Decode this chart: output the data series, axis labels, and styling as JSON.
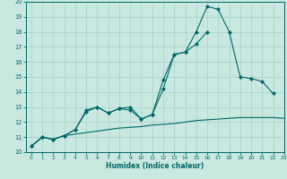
{
  "xlabel": "Humidex (Indice chaleur)",
  "bg_color": "#c8e8e0",
  "line_color": "#006868",
  "grid_color": "#a8d0c8",
  "xlim": [
    -0.5,
    23
  ],
  "ylim": [
    10,
    20
  ],
  "xticks": [
    0,
    1,
    2,
    3,
    4,
    5,
    6,
    7,
    8,
    9,
    10,
    11,
    12,
    13,
    14,
    15,
    16,
    17,
    18,
    19,
    20,
    21,
    22,
    23
  ],
  "yticks": [
    10,
    11,
    12,
    13,
    14,
    15,
    16,
    17,
    18,
    19,
    20
  ],
  "line1_x": [
    0,
    1,
    2,
    3,
    4,
    5,
    6,
    7,
    8,
    9,
    10,
    11,
    12,
    13,
    14,
    15,
    16,
    17,
    18,
    19,
    20,
    21,
    22
  ],
  "line1_y": [
    10.4,
    11.0,
    10.85,
    11.1,
    11.5,
    12.7,
    13.0,
    12.6,
    12.9,
    12.8,
    12.2,
    12.5,
    14.8,
    16.5,
    16.65,
    18.0,
    19.7,
    19.5,
    18.0,
    15.0,
    14.9,
    14.7,
    13.9
  ],
  "line2_x": [
    0,
    1,
    2,
    3,
    4,
    5,
    6,
    7,
    8,
    9,
    10,
    11,
    12,
    13,
    14,
    15,
    16,
    17,
    18,
    19,
    20,
    21,
    22
  ],
  "line2_y": [
    10.4,
    11.0,
    10.85,
    11.1,
    11.5,
    12.8,
    13.0,
    12.6,
    12.9,
    13.0,
    12.2,
    12.5,
    14.2,
    16.5,
    16.65,
    17.2,
    18.0,
    null,
    null,
    null,
    null,
    null,
    null
  ],
  "line3_x": [
    0,
    1,
    2,
    3,
    4,
    5,
    6,
    7,
    8,
    9,
    10,
    11,
    12,
    13,
    14,
    15,
    16,
    17,
    18,
    19,
    20,
    21,
    22,
    23
  ],
  "line3_y": [
    10.4,
    11.0,
    10.85,
    11.1,
    11.2,
    11.3,
    11.4,
    11.5,
    11.6,
    11.65,
    11.7,
    11.8,
    11.85,
    11.9,
    12.0,
    12.1,
    12.15,
    12.2,
    12.25,
    12.3,
    12.3,
    12.3,
    12.3,
    12.25
  ]
}
